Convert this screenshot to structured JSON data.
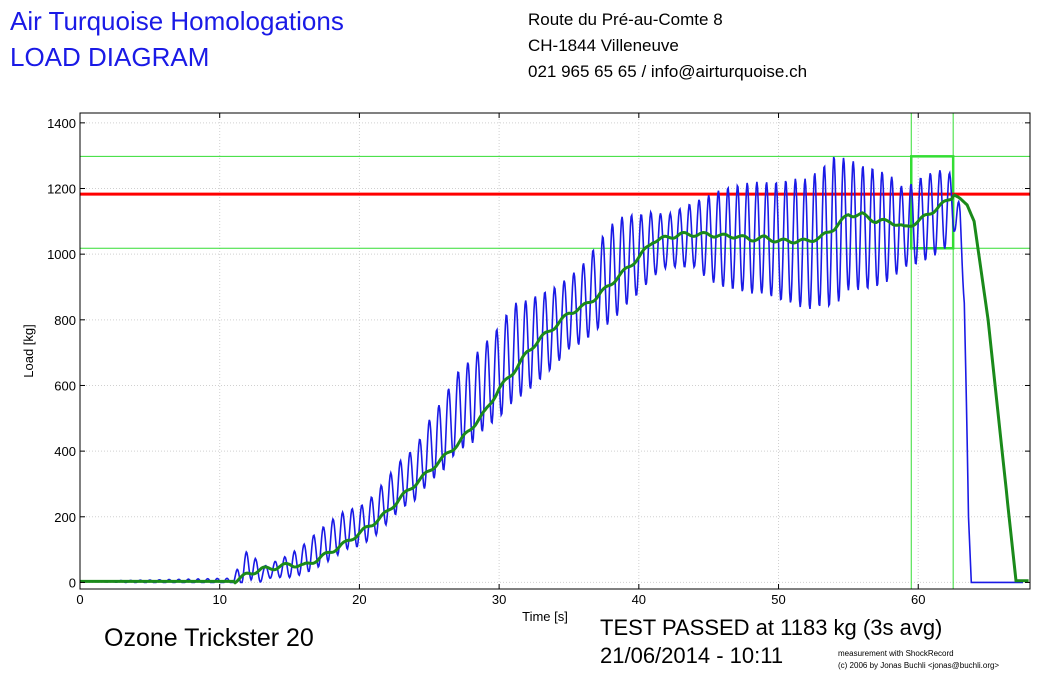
{
  "header": {
    "org": "Air Turquoise Homologations",
    "doc_title": "LOAD DIAGRAM",
    "address_line1": "Route du Pré-au-Comte 8",
    "address_line2": "CH-1844 Villeneuve",
    "contact": "021 965 65 65 / info@airturquoise.ch"
  },
  "footer": {
    "product": "Ozone Trickster 20",
    "result": "TEST PASSED at 1183 kg (3s avg)",
    "datetime": "21/06/2014 - 10:11",
    "credit_line1": "measurement with ShockRecord",
    "credit_line2": "(c) 2006 by Jonas Buchli <jonas@buchli.org>"
  },
  "colors": {
    "raw": "#1a1ae6",
    "avg": "#1a8a1a",
    "limit": "#ff0000",
    "band": "#33dd33",
    "grid": "#d0d0d0"
  },
  "chart_data": {
    "type": "line",
    "xlabel": "Time [s]",
    "ylabel": "Load [kg]",
    "xlim": [
      0,
      68
    ],
    "ylim": [
      -20,
      1430
    ],
    "xticks": [
      0,
      10,
      20,
      30,
      40,
      50,
      60
    ],
    "yticks": [
      0,
      200,
      400,
      600,
      800,
      1000,
      1200,
      1400
    ],
    "grid": true,
    "limit_line": 1183,
    "band_lines": [
      1018,
      1298
    ],
    "band_verticals": [
      59.5,
      62.5
    ],
    "band_box": {
      "x": [
        59.5,
        62.5
      ],
      "y": [
        1018,
        1298
      ]
    },
    "series": [
      {
        "x": [
          0,
          11.0,
          11.5,
          12.2,
          12.6,
          13.2,
          14.0,
          15.0,
          16.0,
          17.0,
          18.0,
          19.0,
          20.0,
          21.0,
          22.0,
          23.0,
          24.0,
          25.0,
          26.0,
          27.0,
          28.0,
          29.0,
          30.0,
          31.0,
          32.0,
          33.0,
          34.0,
          35.0,
          36.0,
          37.0,
          38.0,
          39.0,
          40.0,
          41.0,
          42.0,
          43.0,
          44.0,
          45.0,
          46.0,
          47.0,
          48.0,
          49.0,
          50.0,
          51.0,
          52.0,
          53.0,
          54.0,
          55.0,
          56.0,
          57.0,
          58.0,
          59.0,
          60.0,
          61.0,
          62.0,
          62.6,
          63.0,
          63.3,
          63.6,
          63.8,
          64.0,
          66.0,
          67.5
        ],
        "amp": [
          0,
          10,
          40,
          50,
          40,
          20,
          25,
          35,
          45,
          55,
          60,
          60,
          60,
          65,
          70,
          75,
          80,
          95,
          110,
          120,
          130,
          130,
          140,
          150,
          140,
          130,
          120,
          110,
          120,
          130,
          150,
          140,
          120,
          100,
          80,
          90,
          100,
          130,
          150,
          160,
          170,
          170,
          180,
          190,
          200,
          210,
          230,
          200,
          190,
          180,
          160,
          120,
          130,
          130,
          120,
          80,
          60,
          50,
          0,
          0,
          0,
          0,
          0
        ],
        "base": [
          3,
          3,
          30,
          60,
          30,
          30,
          40,
          50,
          70,
          100,
          130,
          160,
          170,
          200,
          250,
          300,
          330,
          400,
          450,
          520,
          550,
          600,
          640,
          700,
          720,
          750,
          780,
          820,
          850,
          900,
          940,
          980,
          1000,
          1030,
          1040,
          1050,
          1060,
          1050,
          1050,
          1050,
          1050,
          1050,
          1040,
          1040,
          1030,
          1050,
          1070,
          1090,
          1080,
          1080,
          1080,
          1080,
          1100,
          1120,
          1140,
          1150,
          1080,
          900,
          200,
          0,
          0,
          0,
          0
        ]
      },
      {
        "x": [
          0,
          11.0,
          12.0,
          13.0,
          14.0,
          15.0,
          16.0,
          17.0,
          18.0,
          19.0,
          20.0,
          21.0,
          22.0,
          23.0,
          24.0,
          25.0,
          26.0,
          27.0,
          28.0,
          29.0,
          30.0,
          31.0,
          32.0,
          33.0,
          34.0,
          35.0,
          36.0,
          37.0,
          38.0,
          39.0,
          40.0,
          41.0,
          42.0,
          43.0,
          44.0,
          45.0,
          46.0,
          47.0,
          48.0,
          49.0,
          50.0,
          51.0,
          52.0,
          53.0,
          54.0,
          55.0,
          56.0,
          57.0,
          58.0,
          59.0,
          60.0,
          61.0,
          62.0,
          62.6,
          63.0,
          63.5,
          64.0,
          65.0,
          66.0,
          67.0,
          68.0
        ],
        "y": [
          3,
          3,
          25,
          40,
          45,
          55,
          50,
          70,
          95,
          120,
          150,
          180,
          215,
          260,
          300,
          340,
          380,
          420,
          470,
          520,
          590,
          640,
          700,
          745,
          780,
          820,
          840,
          870,
          910,
          950,
          990,
          1040,
          1050,
          1060,
          1060,
          1060,
          1055,
          1055,
          1045,
          1050,
          1040,
          1040,
          1040,
          1050,
          1080,
          1120,
          1120,
          1100,
          1100,
          1080,
          1100,
          1130,
          1160,
          1180,
          1170,
          1150,
          1100,
          800,
          400,
          5,
          5
        ]
      }
    ]
  }
}
